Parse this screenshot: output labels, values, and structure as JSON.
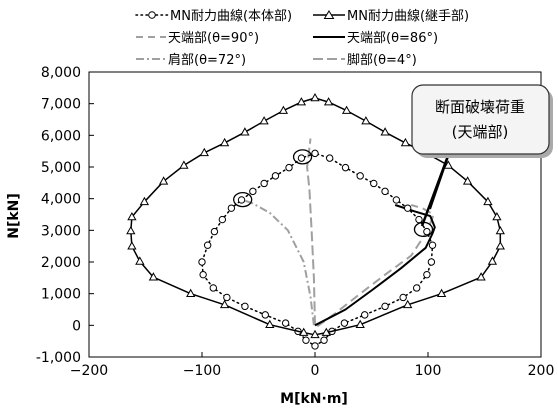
{
  "chart_data": {
    "type": "line",
    "xlabel": "M[kN·m]",
    "ylabel": "N[kN]",
    "xlim": [
      -200,
      200
    ],
    "ylim": [
      -1000,
      8000
    ],
    "x_ticks": [
      {
        "value": -200,
        "label": "−200"
      },
      {
        "value": -100,
        "label": "−100"
      },
      {
        "value": 0,
        "label": "0"
      },
      {
        "value": 100,
        "label": "100"
      },
      {
        "value": 200,
        "label": "200"
      }
    ],
    "y_ticks": [
      {
        "value": -1000,
        "label": "-1,000"
      },
      {
        "value": 0,
        "label": "0"
      },
      {
        "value": 1000,
        "label": "1,000"
      },
      {
        "value": 2000,
        "label": "2,000"
      },
      {
        "value": 3000,
        "label": "3,000"
      },
      {
        "value": 4000,
        "label": "4,000"
      },
      {
        "value": 5000,
        "label": "5,000"
      },
      {
        "value": 6000,
        "label": "6,000"
      },
      {
        "value": 7000,
        "label": "7,000"
      },
      {
        "value": 8000,
        "label": "8,000"
      }
    ],
    "grid": false,
    "legend_position": "top",
    "annotation": {
      "line1": "断面破壊荷重",
      "line2": "(天端部)"
    },
    "series": [
      {
        "name": "MN耐力曲線(本体部)",
        "style": "dotted-circle",
        "color": "#000000",
        "points": [
          [
            0,
            5430
          ],
          [
            -12,
            5280
          ],
          [
            -23,
            4980
          ],
          [
            -35,
            4720
          ],
          [
            -45,
            4480
          ],
          [
            -55,
            4230
          ],
          [
            -65,
            3960
          ],
          [
            -74,
            3700
          ],
          [
            -82,
            3340
          ],
          [
            -89,
            2960
          ],
          [
            -95,
            2530
          ],
          [
            -100,
            2000
          ],
          [
            -99,
            1600
          ],
          [
            -90,
            1180
          ],
          [
            -78,
            880
          ],
          [
            -62,
            600
          ],
          [
            -44,
            330
          ],
          [
            -26,
            70
          ],
          [
            -15,
            -190
          ],
          [
            -8,
            -470
          ],
          [
            0,
            -650
          ],
          [
            8,
            -470
          ],
          [
            15,
            -190
          ],
          [
            26,
            70
          ],
          [
            44,
            330
          ],
          [
            62,
            600
          ],
          [
            78,
            880
          ],
          [
            90,
            1180
          ],
          [
            99,
            1600
          ],
          [
            103,
            2000
          ],
          [
            104,
            2530
          ],
          [
            99,
            2960
          ],
          [
            92,
            3340
          ],
          [
            82,
            3700
          ],
          [
            72,
            3960
          ],
          [
            62,
            4230
          ],
          [
            52,
            4480
          ],
          [
            40,
            4720
          ],
          [
            27,
            4980
          ],
          [
            13,
            5280
          ],
          [
            0,
            5430
          ]
        ]
      },
      {
        "name": "MN耐力曲線(継手部)",
        "style": "solid-triangle",
        "color": "#000000",
        "points": [
          [
            0,
            7180
          ],
          [
            -12,
            7050
          ],
          [
            -28,
            6780
          ],
          [
            -45,
            6450
          ],
          [
            -62,
            6100
          ],
          [
            -80,
            5760
          ],
          [
            -98,
            5450
          ],
          [
            -116,
            5050
          ],
          [
            -134,
            4550
          ],
          [
            -151,
            3900
          ],
          [
            -162,
            3420
          ],
          [
            -163,
            2980
          ],
          [
            -162,
            2500
          ],
          [
            -155,
            2020
          ],
          [
            -143,
            1520
          ],
          [
            -110,
            1000
          ],
          [
            -80,
            650
          ],
          [
            -40,
            20
          ],
          [
            -10,
            -230
          ],
          [
            0,
            -300
          ],
          [
            10,
            -230
          ],
          [
            40,
            20
          ],
          [
            82,
            650
          ],
          [
            112,
            1000
          ],
          [
            147,
            1520
          ],
          [
            157,
            2020
          ],
          [
            164,
            2500
          ],
          [
            164,
            2980
          ],
          [
            161,
            3420
          ],
          [
            153,
            3900
          ],
          [
            135,
            4550
          ],
          [
            118,
            5050
          ],
          [
            98,
            5450
          ],
          [
            80,
            5760
          ],
          [
            62,
            6100
          ],
          [
            45,
            6450
          ],
          [
            28,
            6780
          ],
          [
            12,
            7050
          ],
          [
            0,
            7180
          ]
        ]
      },
      {
        "name": "天端部(θ=90°)",
        "style": "dashed",
        "color": "#a0a0a0",
        "points": [
          [
            2,
            -30
          ],
          [
            18,
            380
          ],
          [
            40,
            1000
          ],
          [
            62,
            1600
          ],
          [
            85,
            2200
          ],
          [
            98,
            2900
          ],
          [
            103,
            3300
          ],
          [
            105,
            3500
          ],
          [
            95,
            3700
          ],
          [
            85,
            3800
          ]
        ]
      },
      {
        "name": "天端部(θ=86°)",
        "style": "solid",
        "color": "#000000",
        "points": [
          [
            0,
            0
          ],
          [
            27,
            500
          ],
          [
            50,
            1100
          ],
          [
            76,
            1800
          ],
          [
            98,
            2450
          ],
          [
            104,
            2900
          ],
          [
            106,
            3100
          ],
          [
            102,
            3450
          ],
          [
            88,
            3600
          ],
          [
            71,
            3800
          ]
        ]
      },
      {
        "name": "肩部(θ=72°)",
        "style": "dash-dot",
        "color": "#a0a0a0",
        "points": [
          [
            -1,
            0
          ],
          [
            -4,
            900
          ],
          [
            -10,
            2000
          ],
          [
            -24,
            3000
          ],
          [
            -40,
            3550
          ],
          [
            -55,
            3850
          ],
          [
            -63,
            3950
          ]
        ]
      },
      {
        "name": "脚部(θ=4°)",
        "style": "long-dash",
        "color": "#a0a0a0",
        "points": [
          [
            0,
            0
          ],
          [
            -1,
            1500
          ],
          [
            -3,
            3000
          ],
          [
            -5,
            4300
          ],
          [
            -7,
            5000
          ],
          [
            -6,
            5300
          ],
          [
            -5,
            5600
          ],
          [
            -4,
            5900
          ]
        ]
      }
    ],
    "highlight_circles": [
      [
        -64,
        3970
      ],
      [
        -11,
        5320
      ],
      [
        96,
        3030
      ]
    ]
  }
}
